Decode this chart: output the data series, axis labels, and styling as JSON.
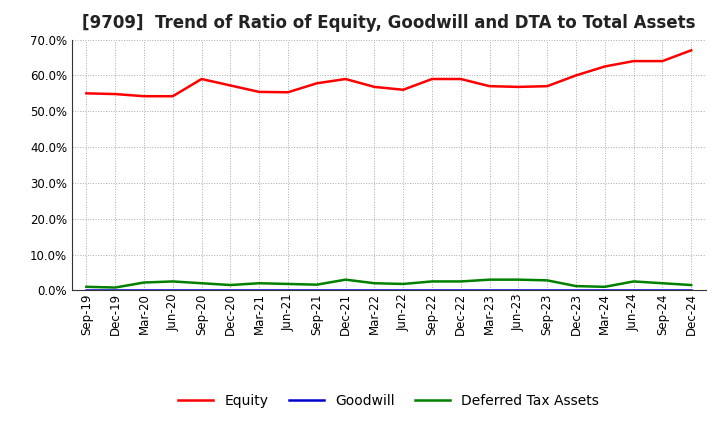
{
  "title": "[9709]  Trend of Ratio of Equity, Goodwill and DTA to Total Assets",
  "x_labels": [
    "Sep-19",
    "Dec-19",
    "Mar-20",
    "Jun-20",
    "Sep-20",
    "Dec-20",
    "Mar-21",
    "Jun-21",
    "Sep-21",
    "Dec-21",
    "Mar-22",
    "Jun-22",
    "Sep-22",
    "Dec-22",
    "Mar-23",
    "Jun-23",
    "Sep-23",
    "Dec-23",
    "Mar-24",
    "Jun-24",
    "Sep-24",
    "Dec-24"
  ],
  "equity": [
    0.55,
    0.548,
    0.542,
    0.542,
    0.59,
    0.572,
    0.554,
    0.553,
    0.578,
    0.59,
    0.568,
    0.56,
    0.59,
    0.59,
    0.57,
    0.568,
    0.57,
    0.6,
    0.625,
    0.64,
    0.64,
    0.67
  ],
  "goodwill": [
    0.0,
    0.0,
    0.0,
    0.0,
    0.0,
    0.0,
    0.0,
    0.0,
    0.0,
    0.0,
    0.0,
    0.0,
    0.0,
    0.0,
    0.0,
    0.0,
    0.0,
    0.0,
    0.0,
    0.0,
    0.0,
    0.0
  ],
  "dta": [
    0.01,
    0.008,
    0.022,
    0.025,
    0.02,
    0.015,
    0.02,
    0.018,
    0.016,
    0.03,
    0.02,
    0.018,
    0.025,
    0.025,
    0.03,
    0.03,
    0.028,
    0.012,
    0.01,
    0.025,
    0.02,
    0.015
  ],
  "equity_color": "#ff0000",
  "goodwill_color": "#0000cd",
  "dta_color": "#008000",
  "ylim": [
    0.0,
    0.7
  ],
  "yticks": [
    0.0,
    0.1,
    0.2,
    0.3,
    0.4,
    0.5,
    0.6,
    0.7
  ],
  "legend_labels": [
    "Equity",
    "Goodwill",
    "Deferred Tax Assets"
  ],
  "background_color": "#ffffff",
  "grid_color": "#aaaaaa",
  "title_fontsize": 12,
  "axis_fontsize": 8.5,
  "legend_fontsize": 10
}
